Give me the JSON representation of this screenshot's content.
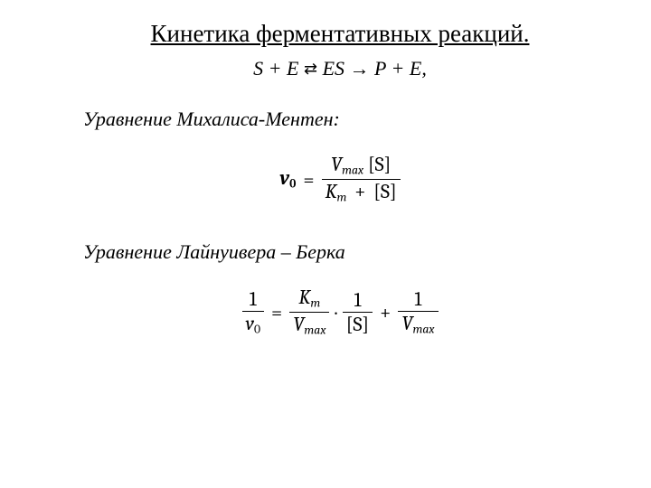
{
  "title": "Кинетика ферментативных реакций.",
  "reaction": {
    "lhs": "S   +   E ",
    "equil": "⇄",
    "mid": " ES → P   +   E,",
    "full_aria": "S + E ⇌ ES → P + E,"
  },
  "subhead1": "Уравнение Михалиса-Ментен:",
  "mm": {
    "v": "v",
    "zero": "0",
    "eq": "=",
    "Vmax_V": "V",
    "Vmax_sub": "max",
    "S": "[S]",
    "Km_K": "K",
    "Km_sub": "m",
    "plus": "+"
  },
  "subhead2": "Уравнение Лайнуивера – Берка",
  "lb": {
    "one": "1",
    "v": "v",
    "zero": "0",
    "eq": "=",
    "Km_K": "K",
    "Km_sub": "m",
    "Vmax_V": "V",
    "Vmax_sub": "max",
    "dot": "·",
    "S": "[S]",
    "plus": "+"
  },
  "colors": {
    "text": "#000000",
    "background": "#ffffff"
  },
  "fonts": {
    "title_size_pt": 20,
    "body_size_pt": 16,
    "family": "Times New Roman"
  }
}
